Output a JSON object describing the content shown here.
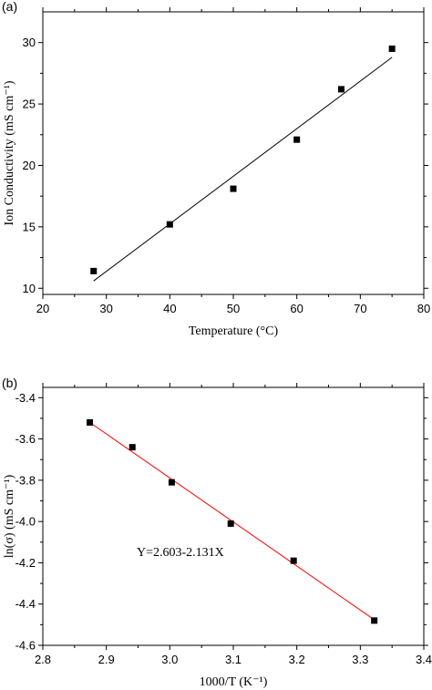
{
  "chart_data": [
    {
      "type": "scatter",
      "panel_label": "(a)",
      "xlabel": "Temperature (°C)",
      "ylabel": "Ion Conductivity (mS cm⁻¹)",
      "xlim": [
        20,
        80
      ],
      "ylim": [
        9.5,
        32.5
      ],
      "xticks": [
        20,
        30,
        40,
        50,
        60,
        70,
        80
      ],
      "yticks": [
        10,
        15,
        20,
        25,
        30
      ],
      "grid": false,
      "series": [
        {
          "marker": "square",
          "color": "#000000",
          "x": [
            28,
            40,
            50,
            60,
            67,
            75
          ],
          "y": [
            11.4,
            15.2,
            18.1,
            22.1,
            26.2,
            29.5
          ]
        }
      ],
      "fit_line": {
        "color": "#000000",
        "x": [
          28,
          75
        ],
        "y": [
          10.6,
          28.8
        ]
      }
    },
    {
      "type": "scatter",
      "panel_label": "(b)",
      "xlabel": "1000/T (K⁻¹)",
      "ylabel": "ln(σ) (mS cm⁻¹)",
      "xlim": [
        2.8,
        3.4
      ],
      "ylim": [
        -4.6,
        -3.35
      ],
      "xticks": [
        2.8,
        2.9,
        3.0,
        3.1,
        3.2,
        3.3,
        3.4
      ],
      "yticks": [
        -4.6,
        -4.4,
        -4.2,
        -4.0,
        -3.8,
        -3.6,
        -3.4
      ],
      "grid": false,
      "annotation": "Y=2.603-2.131X",
      "series": [
        {
          "marker": "square",
          "color": "#000000",
          "x": [
            2.874,
            2.941,
            3.003,
            3.096,
            3.195,
            3.322
          ],
          "y": [
            -3.52,
            -3.64,
            -3.81,
            -4.01,
            -4.19,
            -4.48
          ]
        }
      ],
      "fit_line": {
        "color": "#ff0000",
        "x": [
          2.874,
          3.322
        ],
        "y": [
          -3.52,
          -4.476
        ]
      }
    }
  ]
}
